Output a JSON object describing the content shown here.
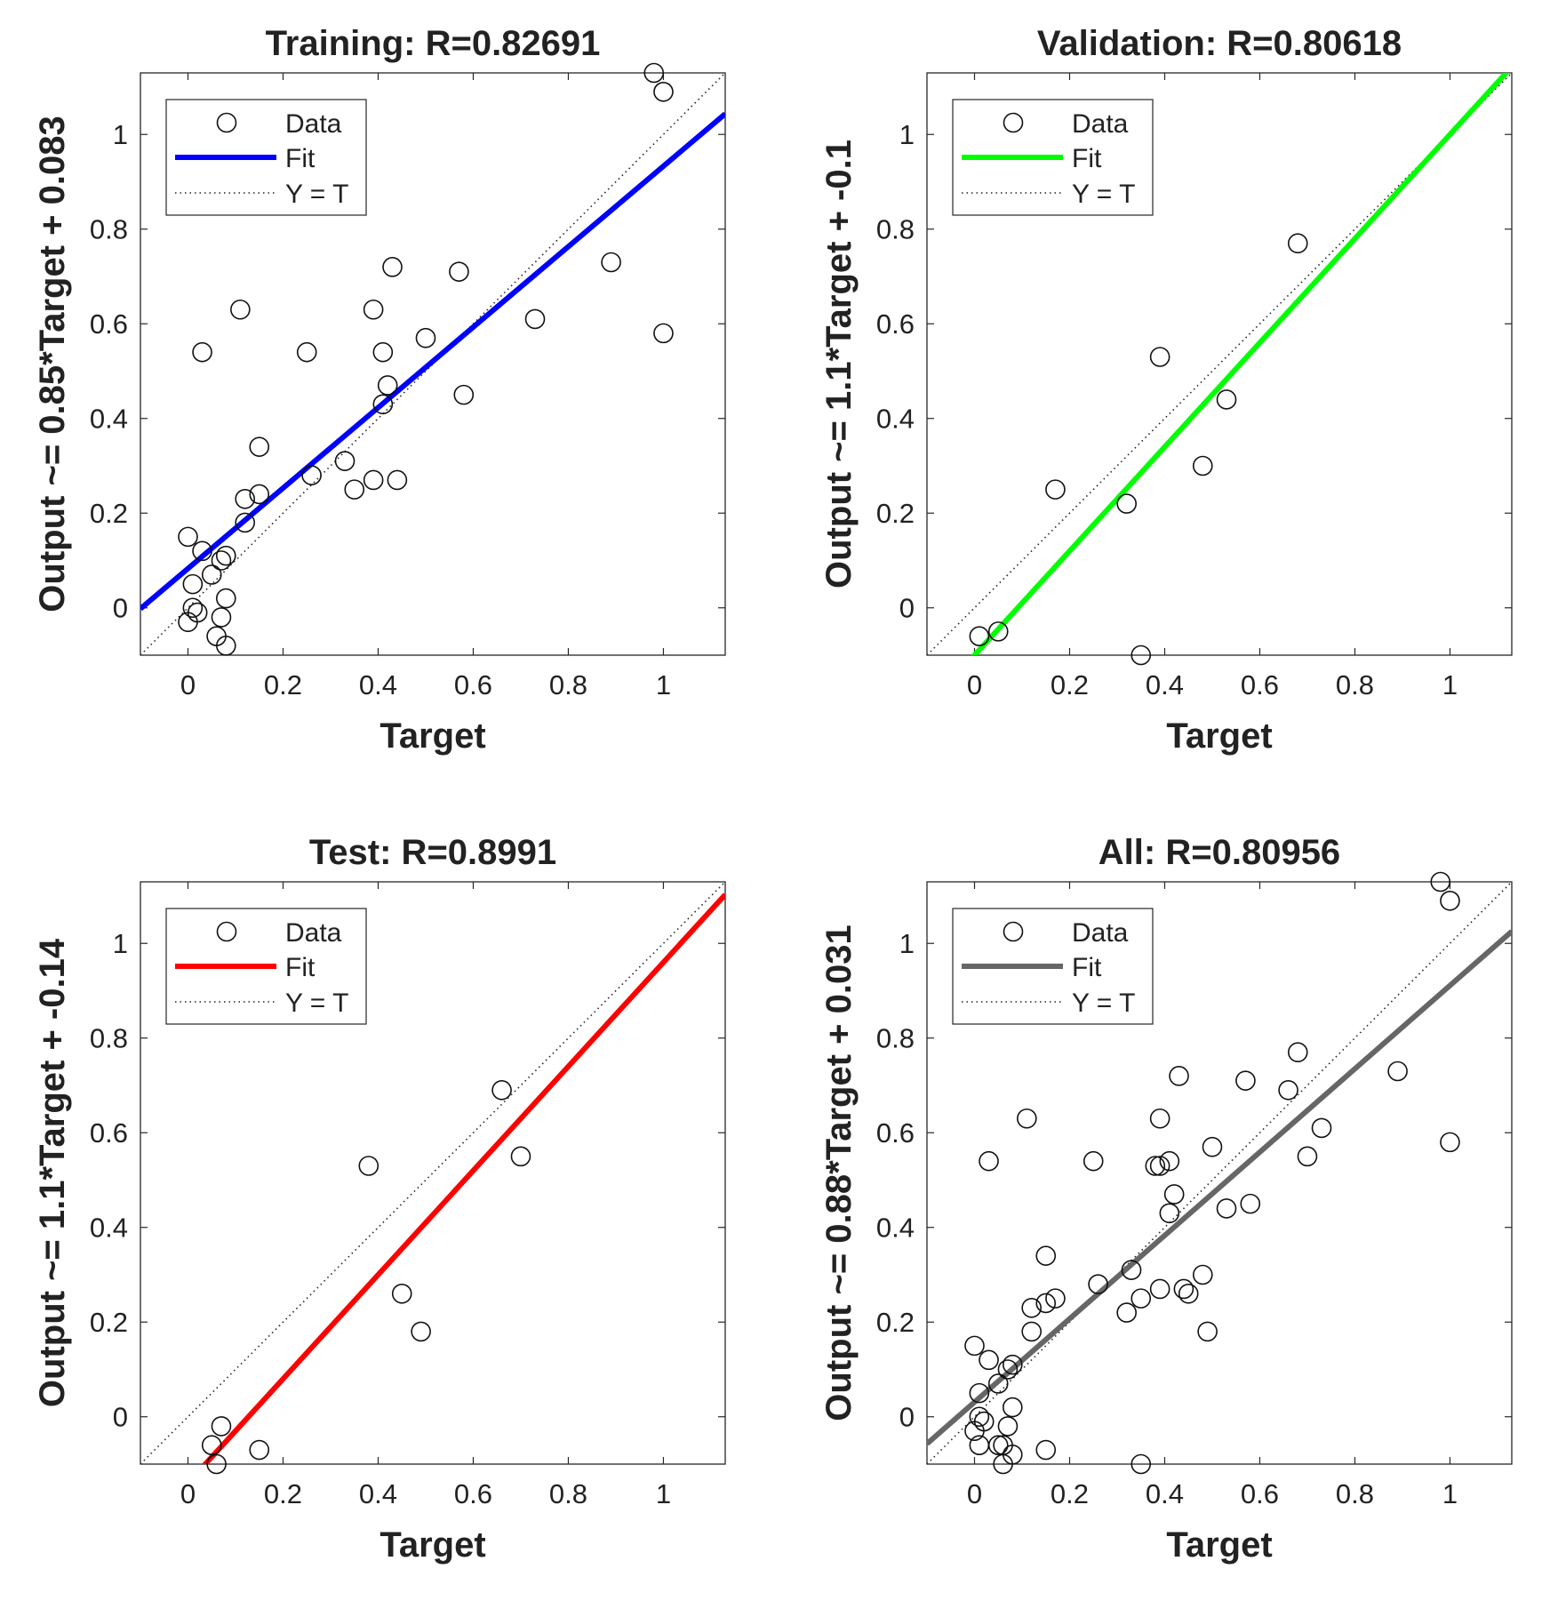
{
  "legend_labels": {
    "data": "Data",
    "fit": "Fit",
    "identity": "Y = T"
  },
  "chart_data": [
    {
      "id": "training",
      "type": "scatter",
      "title": "Training: R=0.82691",
      "xlabel": "Target",
      "ylabel": "Output ~= 0.85*Target + 0.083",
      "xlim": [
        -0.1,
        1.13
      ],
      "ylim": [
        -0.1,
        1.13
      ],
      "xticks": [
        0,
        0.2,
        0.4,
        0.6,
        0.8,
        1
      ],
      "yticks": [
        0,
        0.2,
        0.4,
        0.6,
        0.8,
        1
      ],
      "grid": false,
      "legend_position": "top-left",
      "fit": {
        "slope": 0.85,
        "intercept": 0.083,
        "color": "#0000ff"
      },
      "series": [
        {
          "name": "Data",
          "points": [
            [
              0.98,
              1.13
            ],
            [
              1.0,
              1.09
            ],
            [
              0.89,
              0.73
            ],
            [
              1.0,
              0.58
            ],
            [
              0.73,
              0.61
            ],
            [
              0.57,
              0.71
            ],
            [
              0.43,
              0.72
            ],
            [
              0.39,
              0.63
            ],
            [
              0.5,
              0.57
            ],
            [
              0.41,
              0.54
            ],
            [
              0.25,
              0.54
            ],
            [
              0.11,
              0.63
            ],
            [
              0.03,
              0.54
            ],
            [
              0.58,
              0.45
            ],
            [
              0.42,
              0.47
            ],
            [
              0.41,
              0.43
            ],
            [
              0.15,
              0.34
            ],
            [
              0.33,
              0.31
            ],
            [
              0.26,
              0.28
            ],
            [
              0.39,
              0.27
            ],
            [
              0.44,
              0.27
            ],
            [
              0.35,
              0.25
            ],
            [
              0.15,
              0.24
            ],
            [
              0.12,
              0.23
            ],
            [
              0.12,
              0.18
            ],
            [
              0.0,
              0.15
            ],
            [
              0.03,
              0.12
            ],
            [
              0.08,
              0.11
            ],
            [
              0.07,
              0.1
            ],
            [
              0.05,
              0.07
            ],
            [
              0.01,
              0.05
            ],
            [
              0.08,
              0.02
            ],
            [
              0.01,
              0.0
            ],
            [
              0.02,
              -0.01
            ],
            [
              0.0,
              -0.03
            ],
            [
              0.07,
              -0.02
            ],
            [
              0.06,
              -0.06
            ],
            [
              0.08,
              -0.08
            ]
          ]
        },
        {
          "name": "Fit",
          "line": true
        },
        {
          "name": "Y = T",
          "line": true,
          "style": "dotted"
        }
      ]
    },
    {
      "id": "validation",
      "type": "scatter",
      "title": "Validation: R=0.80618",
      "xlabel": "Target",
      "ylabel": "Output ~= 1.1*Target + -0.1",
      "xlim": [
        -0.1,
        1.13
      ],
      "ylim": [
        -0.1,
        1.13
      ],
      "xticks": [
        0,
        0.2,
        0.4,
        0.6,
        0.8,
        1
      ],
      "yticks": [
        0,
        0.2,
        0.4,
        0.6,
        0.8,
        1
      ],
      "grid": false,
      "legend_position": "top-left",
      "fit": {
        "slope": 1.1,
        "intercept": -0.1,
        "color": "#00ff00"
      },
      "series": [
        {
          "name": "Data",
          "points": [
            [
              0.68,
              0.77
            ],
            [
              0.39,
              0.53
            ],
            [
              0.53,
              0.44
            ],
            [
              0.48,
              0.3
            ],
            [
              0.17,
              0.25
            ],
            [
              0.32,
              0.22
            ],
            [
              0.01,
              -0.06
            ],
            [
              0.05,
              -0.05
            ],
            [
              0.35,
              -0.1
            ]
          ]
        },
        {
          "name": "Fit",
          "line": true
        },
        {
          "name": "Y = T",
          "line": true,
          "style": "dotted"
        }
      ]
    },
    {
      "id": "test",
      "type": "scatter",
      "title": "Test: R=0.8991",
      "xlabel": "Target",
      "ylabel": "Output ~= 1.1*Target + -0.14",
      "xlim": [
        -0.1,
        1.13
      ],
      "ylim": [
        -0.1,
        1.13
      ],
      "xticks": [
        0,
        0.2,
        0.4,
        0.6,
        0.8,
        1
      ],
      "yticks": [
        0,
        0.2,
        0.4,
        0.6,
        0.8,
        1
      ],
      "grid": false,
      "legend_position": "top-left",
      "fit": {
        "slope": 1.1,
        "intercept": -0.14,
        "color": "#ff0000"
      },
      "series": [
        {
          "name": "Data",
          "points": [
            [
              0.66,
              0.69
            ],
            [
              0.7,
              0.55
            ],
            [
              0.38,
              0.53
            ],
            [
              0.45,
              0.26
            ],
            [
              0.49,
              0.18
            ],
            [
              0.07,
              -0.02
            ],
            [
              0.05,
              -0.06
            ],
            [
              0.15,
              -0.07
            ],
            [
              0.06,
              -0.1
            ]
          ]
        },
        {
          "name": "Fit",
          "line": true
        },
        {
          "name": "Y = T",
          "line": true,
          "style": "dotted"
        }
      ]
    },
    {
      "id": "all",
      "type": "scatter",
      "title": "All: R=0.80956",
      "xlabel": "Target",
      "ylabel": "Output ~= 0.88*Target + 0.031",
      "xlim": [
        -0.1,
        1.13
      ],
      "ylim": [
        -0.1,
        1.13
      ],
      "xticks": [
        0,
        0.2,
        0.4,
        0.6,
        0.8,
        1
      ],
      "yticks": [
        0,
        0.2,
        0.4,
        0.6,
        0.8,
        1
      ],
      "grid": false,
      "legend_position": "top-left",
      "fit": {
        "slope": 0.88,
        "intercept": 0.031,
        "color": "#666666"
      },
      "series": [
        {
          "name": "Data",
          "points": [
            [
              0.98,
              1.13
            ],
            [
              1.0,
              1.09
            ],
            [
              0.89,
              0.73
            ],
            [
              1.0,
              0.58
            ],
            [
              0.73,
              0.61
            ],
            [
              0.68,
              0.77
            ],
            [
              0.66,
              0.69
            ],
            [
              0.57,
              0.71
            ],
            [
              0.43,
              0.72
            ],
            [
              0.7,
              0.55
            ],
            [
              0.58,
              0.45
            ],
            [
              0.53,
              0.44
            ],
            [
              0.5,
              0.57
            ],
            [
              0.39,
              0.63
            ],
            [
              0.41,
              0.54
            ],
            [
              0.38,
              0.53
            ],
            [
              0.39,
              0.53
            ],
            [
              0.42,
              0.47
            ],
            [
              0.41,
              0.43
            ],
            [
              0.25,
              0.54
            ],
            [
              0.11,
              0.63
            ],
            [
              0.03,
              0.54
            ],
            [
              0.15,
              0.34
            ],
            [
              0.33,
              0.31
            ],
            [
              0.26,
              0.28
            ],
            [
              0.39,
              0.27
            ],
            [
              0.44,
              0.27
            ],
            [
              0.45,
              0.26
            ],
            [
              0.35,
              0.25
            ],
            [
              0.48,
              0.3
            ],
            [
              0.32,
              0.22
            ],
            [
              0.49,
              0.18
            ],
            [
              0.17,
              0.25
            ],
            [
              0.15,
              0.24
            ],
            [
              0.12,
              0.23
            ],
            [
              0.12,
              0.18
            ],
            [
              0.0,
              0.15
            ],
            [
              0.03,
              0.12
            ],
            [
              0.08,
              0.11
            ],
            [
              0.07,
              0.1
            ],
            [
              0.05,
              0.07
            ],
            [
              0.01,
              0.05
            ],
            [
              0.08,
              0.02
            ],
            [
              0.01,
              0.0
            ],
            [
              0.02,
              -0.01
            ],
            [
              0.0,
              -0.03
            ],
            [
              0.07,
              -0.02
            ],
            [
              0.01,
              -0.06
            ],
            [
              0.05,
              -0.06
            ],
            [
              0.06,
              -0.06
            ],
            [
              0.08,
              -0.08
            ],
            [
              0.06,
              -0.1
            ],
            [
              0.15,
              -0.07
            ],
            [
              0.35,
              -0.1
            ]
          ]
        },
        {
          "name": "Fit",
          "line": true
        },
        {
          "name": "Y = T",
          "line": true,
          "style": "dotted"
        }
      ]
    }
  ]
}
